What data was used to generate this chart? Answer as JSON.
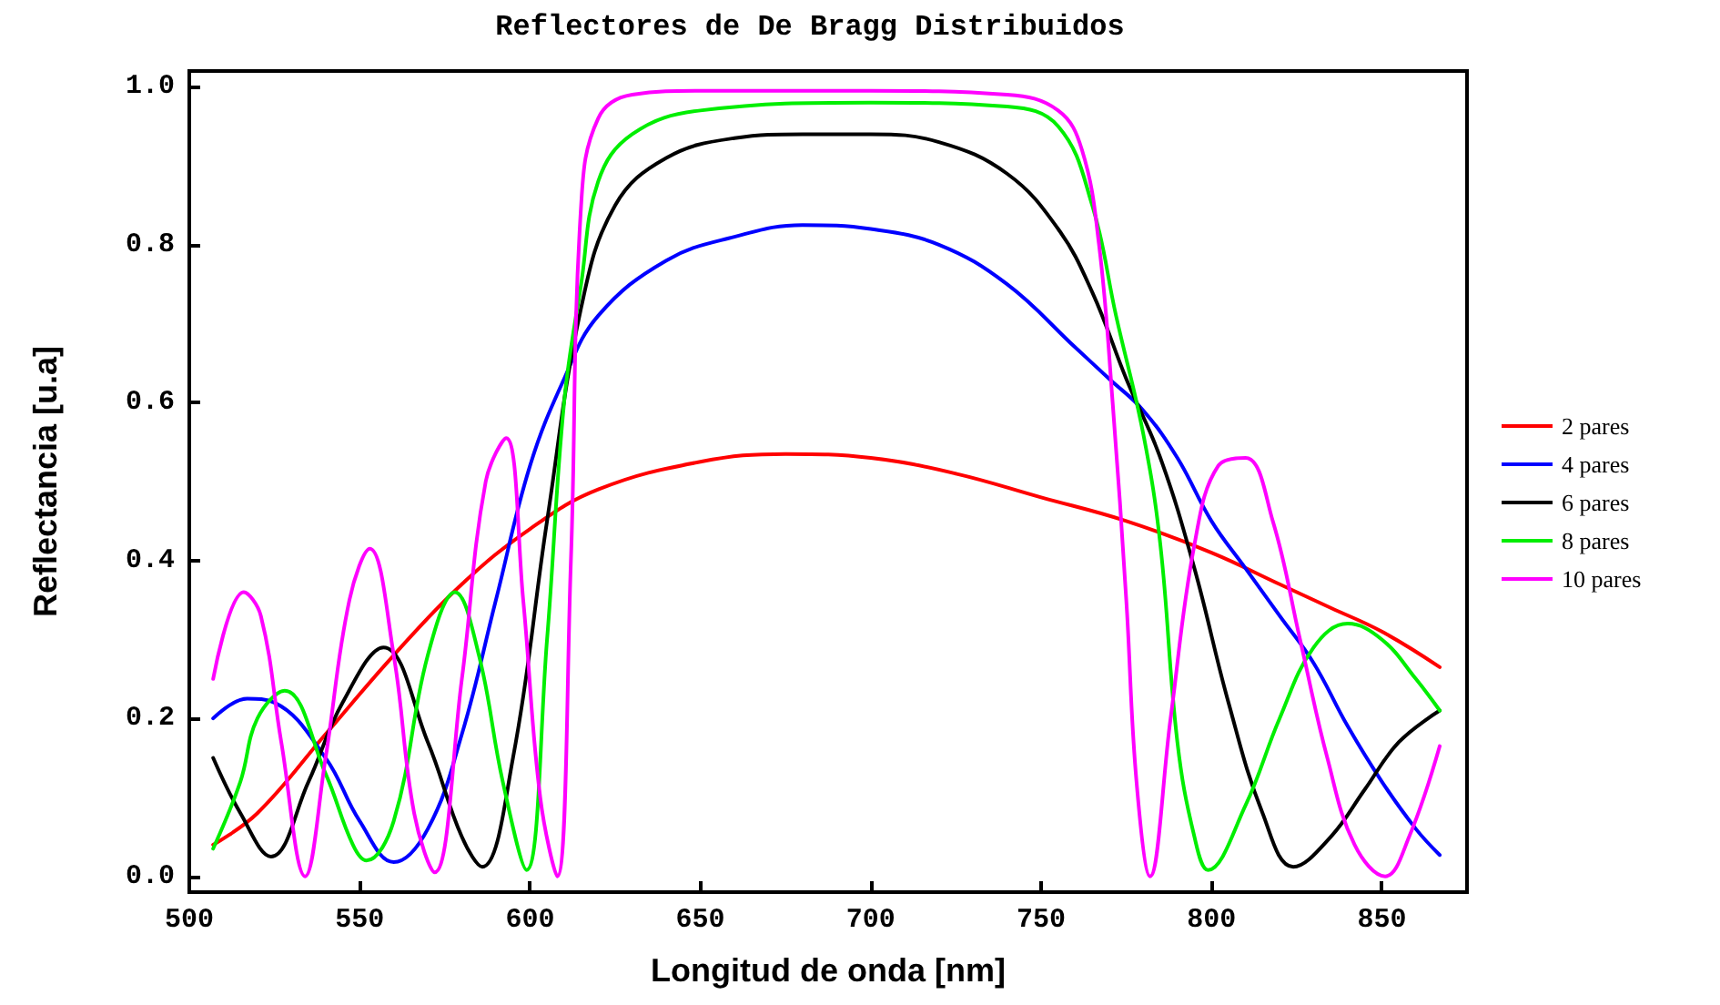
{
  "chart_data": {
    "type": "line",
    "title": "Reflectores de De Bragg Distribuidos",
    "xlabel": "Longitud de onda [nm]",
    "ylabel": "Reflectancia [u.a]",
    "xlim": [
      500,
      875
    ],
    "xticks": [
      500,
      550,
      600,
      650,
      700,
      750,
      800,
      850
    ],
    "ylim": [
      -0.02,
      1.02
    ],
    "yticks": [
      {
        "value": 0,
        "label": "0.0"
      },
      0.2,
      0.4,
      0.6,
      0.8,
      {
        "value": 1,
        "label": "1.0"
      }
    ],
    "grid": false,
    "legend": "right",
    "marker": "none",
    "line_style": "solid",
    "series": [
      {
        "name": "2 pares",
        "color": "#ff0000",
        "x": [
          507,
          520,
          540,
          560,
          580,
          600,
          620,
          650,
          675,
          700,
          725,
          750,
          775,
          800,
          820,
          835,
          850,
          867
        ],
        "values": [
          0.04,
          0.08,
          0.18,
          0.28,
          0.37,
          0.44,
          0.49,
          0.525,
          0.535,
          0.53,
          0.51,
          0.48,
          0.45,
          0.41,
          0.37,
          0.34,
          0.31,
          0.265
        ]
      },
      {
        "name": "4 pares",
        "color": "#0000ff",
        "x": [
          507,
          517,
          525,
          540,
          550,
          560,
          570,
          580,
          590,
          600,
          610,
          620,
          640,
          660,
          680,
          700,
          720,
          740,
          760,
          770,
          780,
          790,
          800,
          810,
          820,
          830,
          840,
          850,
          860,
          867
        ],
        "values": [
          0.2,
          0.225,
          0.22,
          0.15,
          0.07,
          0.018,
          0.06,
          0.18,
          0.35,
          0.52,
          0.63,
          0.71,
          0.78,
          0.81,
          0.825,
          0.82,
          0.8,
          0.75,
          0.67,
          0.63,
          0.59,
          0.53,
          0.45,
          0.39,
          0.33,
          0.27,
          0.19,
          0.12,
          0.06,
          0.027
        ]
      },
      {
        "name": "6 pares",
        "color": "#000000",
        "x": [
          507,
          515,
          524,
          535,
          545,
          557,
          570,
          580,
          586,
          595,
          605,
          615,
          625,
          640,
          660,
          680,
          700,
          720,
          740,
          755,
          765,
          775,
          785,
          795,
          805,
          815,
          824,
          835,
          845,
          855,
          867
        ],
        "values": [
          0.15,
          0.08,
          0.025,
          0.12,
          0.22,
          0.29,
          0.17,
          0.05,
          0.012,
          0.15,
          0.45,
          0.72,
          0.85,
          0.91,
          0.935,
          0.94,
          0.94,
          0.93,
          0.89,
          0.82,
          0.74,
          0.63,
          0.53,
          0.39,
          0.22,
          0.08,
          0.012,
          0.05,
          0.11,
          0.17,
          0.21
        ]
      },
      {
        "name": "8 pares",
        "color": "#00ee00",
        "x": [
          507,
          515,
          520,
          528,
          540,
          548,
          552,
          560,
          570,
          578,
          585,
          592,
          599,
          605,
          610,
          615,
          620,
          630,
          650,
          700,
          740,
          755,
          765,
          772,
          780,
          785,
          790,
          795,
          799,
          810,
          820,
          830,
          840,
          850,
          860,
          867
        ],
        "values": [
          0.035,
          0.12,
          0.2,
          0.235,
          0.13,
          0.04,
          0.02,
          0.07,
          0.28,
          0.36,
          0.28,
          0.12,
          0.008,
          0.3,
          0.6,
          0.75,
          0.88,
          0.94,
          0.97,
          0.98,
          0.975,
          0.95,
          0.85,
          0.71,
          0.56,
          0.42,
          0.17,
          0.05,
          0.008,
          0.09,
          0.2,
          0.29,
          0.32,
          0.3,
          0.25,
          0.21
        ]
      },
      {
        "name": "10 pares",
        "color": "#ff00ff",
        "x": [
          507,
          516,
          521,
          527,
          534,
          540,
          547,
          553,
          560,
          566,
          572,
          580,
          587,
          593,
          598,
          603,
          608,
          612,
          615,
          620,
          630,
          650,
          700,
          740,
          755,
          762,
          767,
          771,
          775,
          778,
          782,
          788,
          795,
          802,
          810,
          818,
          826,
          834,
          842,
          851,
          858,
          867
        ],
        "values": [
          0.25,
          0.36,
          0.33,
          0.17,
          0.0,
          0.15,
          0.35,
          0.415,
          0.28,
          0.08,
          0.005,
          0.25,
          0.5,
          0.555,
          0.35,
          0.1,
          0.0,
          0.4,
          0.85,
          0.96,
          0.99,
          0.995,
          0.995,
          0.99,
          0.97,
          0.92,
          0.8,
          0.6,
          0.35,
          0.12,
          0.0,
          0.2,
          0.42,
          0.52,
          0.53,
          0.45,
          0.3,
          0.15,
          0.04,
          0.0,
          0.05,
          0.165
        ]
      }
    ]
  }
}
